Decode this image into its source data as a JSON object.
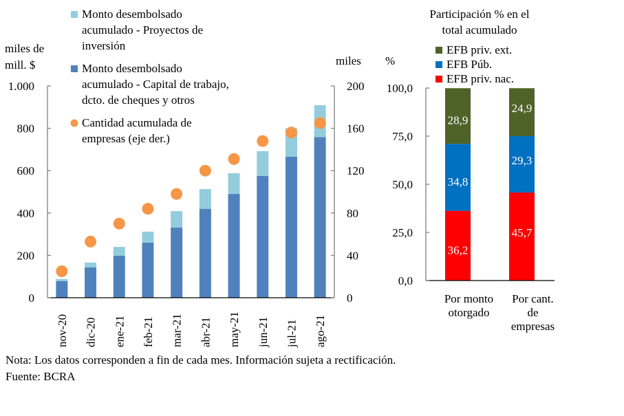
{
  "chart_data": [
    {
      "type": "bar",
      "stacked": true,
      "categories": [
        "nov-20",
        "dic-20",
        "ene-21",
        "feb-21",
        "mar-21",
        "abr-21",
        "may-21",
        "jun-21",
        "jul-21",
        "ago-21"
      ],
      "series": [
        {
          "name": "Monto desembolsado acumulado - Capital de trabajo, dcto. de cheques y otros",
          "legend_lines": [
            "Monto desembolsado",
            "acumulado - Capital de trabajo,",
            "dcto. de cheques y otros"
          ],
          "color": "#4F81BD",
          "axis": "left",
          "values": [
            78,
            143,
            198,
            260,
            331,
            420,
            490,
            575,
            666,
            758
          ]
        },
        {
          "name": "Monto desembolsado acumulado - Proyectos de inversión",
          "legend_lines": [
            "Monto desembolsado",
            "acumulado - Proyectos de",
            "inversión"
          ],
          "color": "#93CDDD",
          "axis": "left",
          "values": [
            10,
            23,
            42,
            52,
            78,
            93,
            98,
            117,
            134,
            151
          ]
        },
        {
          "name": "Cantidad acumulada de empresas (eje der.)",
          "legend_lines": [
            "Cantidad acumulada de",
            "empresas (eje der.)"
          ],
          "color": "#F79646",
          "axis": "right",
          "type": "scatter",
          "values": [
            25,
            53,
            70,
            84,
            98,
            120,
            131,
            148,
            156,
            165
          ]
        }
      ],
      "ylabel_left_lines": [
        "miles de",
        "mill. $"
      ],
      "ylabel_right": "miles",
      "ylim_left": [
        0,
        1000
      ],
      "yticks_left": [
        "0",
        "200",
        "400",
        "600",
        "800",
        "1.000"
      ],
      "yticks_left_values": [
        0,
        200,
        400,
        600,
        800,
        1000
      ],
      "ylim_right": [
        0,
        200
      ],
      "yticks_right": [
        "0",
        "40",
        "80",
        "120",
        "160",
        "200"
      ],
      "yticks_right_values": [
        0,
        40,
        80,
        120,
        160,
        200
      ],
      "legend_position": "top-left (inside plot)",
      "grid": false
    },
    {
      "type": "bar",
      "stacked": true,
      "title_lines": [
        "Participación % en el",
        "total acumulado"
      ],
      "ylabel": "%",
      "categories": [
        [
          "Por monto",
          "otorgado"
        ],
        [
          "Por cant.",
          "de",
          "empresas"
        ]
      ],
      "series": [
        {
          "name": "EFB priv. nac.",
          "color": "#FF0000",
          "values": [
            36.2,
            45.7
          ],
          "labels": [
            "36,2",
            "45,7"
          ]
        },
        {
          "name": "EFB Púb.",
          "color": "#0070C0",
          "values": [
            34.8,
            29.3
          ],
          "labels": [
            "34,8",
            "29,3"
          ]
        },
        {
          "name": "EFB priv. ext.",
          "color": "#4F6228",
          "values": [
            28.9,
            24.9
          ],
          "labels": [
            "28,9",
            "24,9"
          ]
        }
      ],
      "legend_order": [
        "EFB priv. ext.",
        "EFB Púb.",
        "EFB priv. nac."
      ],
      "ylim": [
        0,
        100
      ],
      "yticks": [
        "0,0",
        "25,0",
        "50,0",
        "75,0",
        "100,0"
      ],
      "yticks_values": [
        0,
        25,
        50,
        75,
        100
      ],
      "legend_position": "top",
      "grid": false
    }
  ],
  "notes": {
    "nota": "Nota: Los datos corresponden a fin de cada mes. Información sujeta a rectificación.",
    "fuente": "Fuente: BCRA"
  }
}
